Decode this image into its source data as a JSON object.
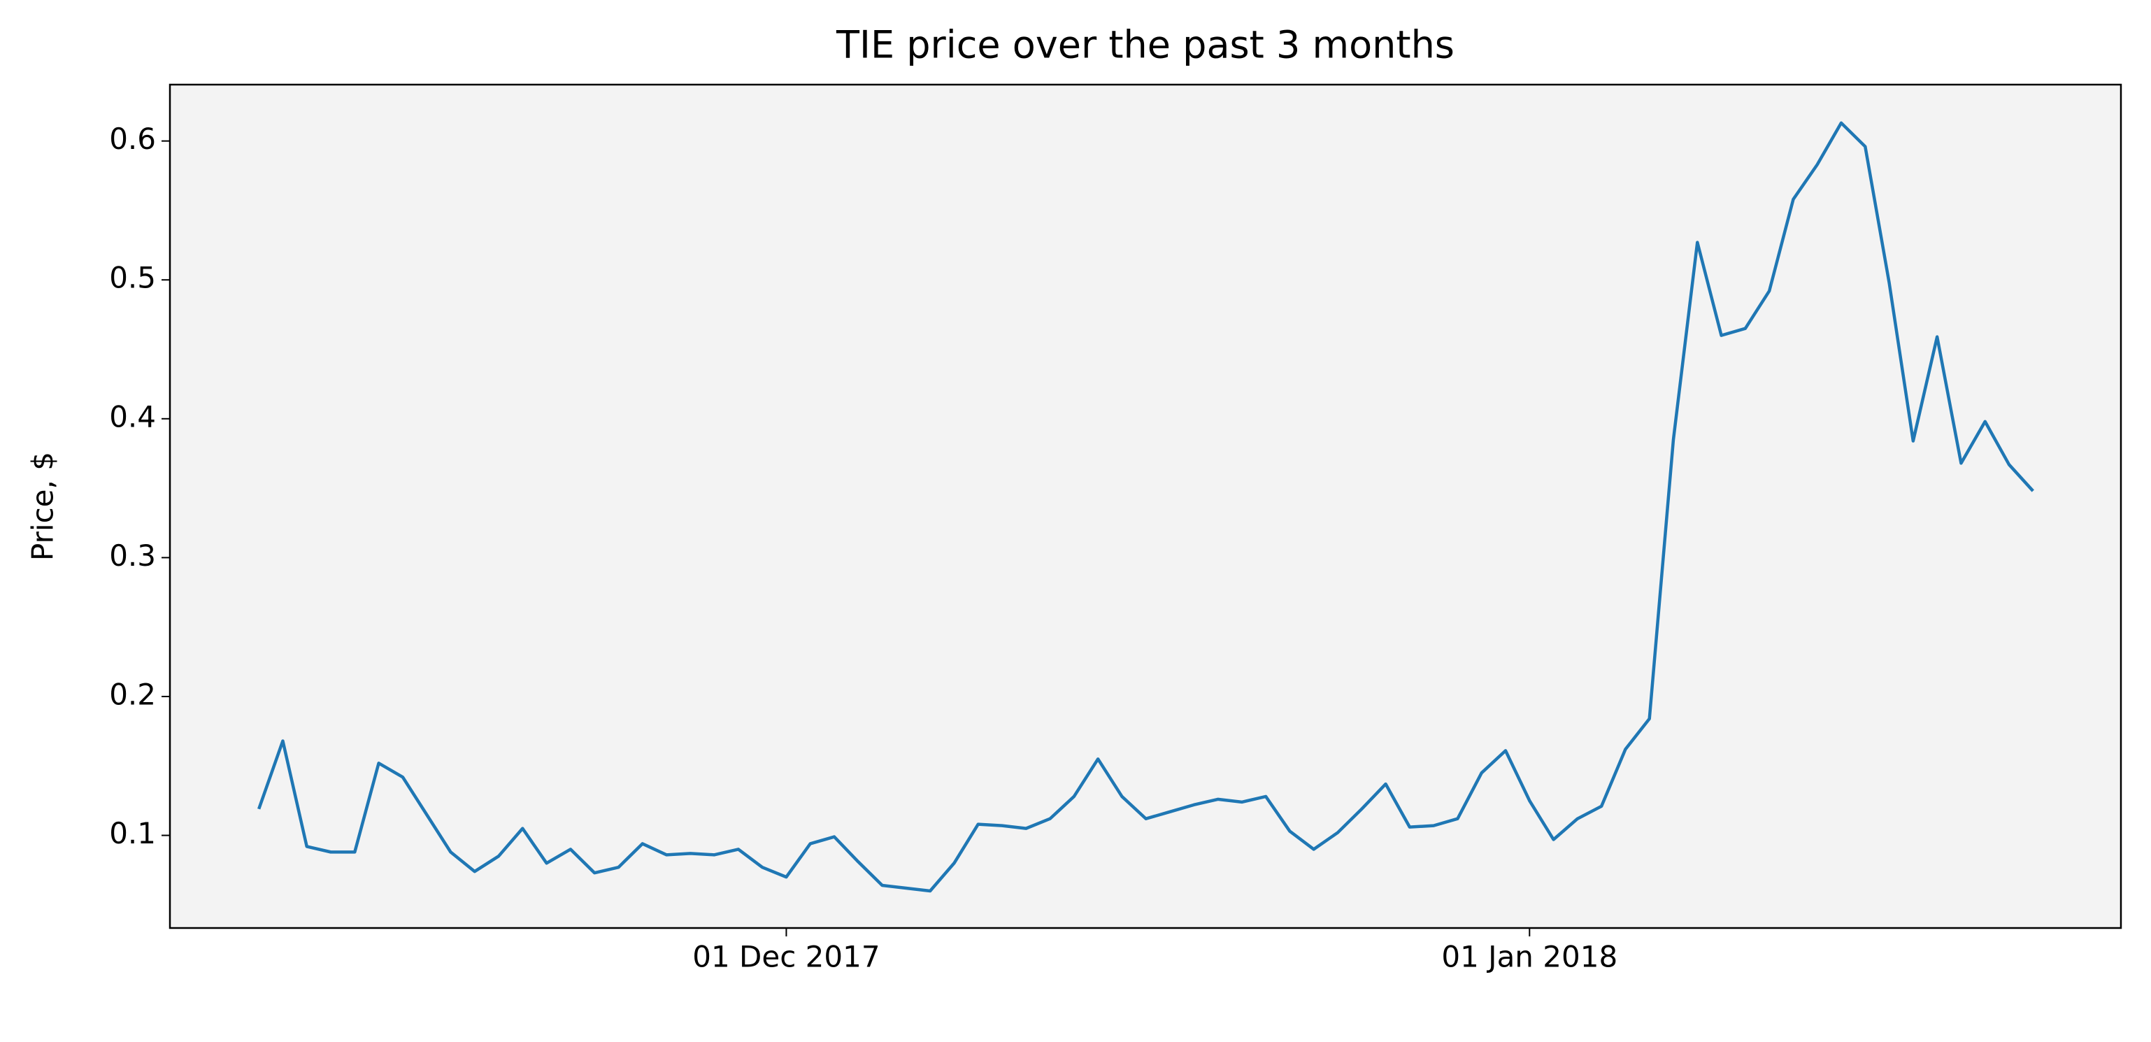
{
  "chart_data": {
    "type": "line",
    "title": "TIE price over the past 3 months",
    "ylabel": "Price, $",
    "x": [
      "2017-11-09",
      "2017-11-10",
      "2017-11-11",
      "2017-11-12",
      "2017-11-13",
      "2017-11-14",
      "2017-11-15",
      "2017-11-16",
      "2017-11-17",
      "2017-11-18",
      "2017-11-19",
      "2017-11-20",
      "2017-11-21",
      "2017-11-22",
      "2017-11-23",
      "2017-11-24",
      "2017-11-25",
      "2017-11-26",
      "2017-11-27",
      "2017-11-28",
      "2017-11-29",
      "2017-11-30",
      "2017-12-01",
      "2017-12-02",
      "2017-12-03",
      "2017-12-04",
      "2017-12-05",
      "2017-12-06",
      "2017-12-07",
      "2017-12-08",
      "2017-12-09",
      "2017-12-10",
      "2017-12-11",
      "2017-12-12",
      "2017-12-13",
      "2017-12-14",
      "2017-12-15",
      "2017-12-16",
      "2017-12-17",
      "2017-12-18",
      "2017-12-19",
      "2017-12-20",
      "2017-12-21",
      "2017-12-22",
      "2017-12-23",
      "2017-12-24",
      "2017-12-25",
      "2017-12-26",
      "2017-12-27",
      "2017-12-28",
      "2017-12-29",
      "2017-12-30",
      "2017-12-31",
      "2018-01-01",
      "2018-01-02",
      "2018-01-03",
      "2018-01-04",
      "2018-01-05",
      "2018-01-06",
      "2018-01-07",
      "2018-01-08",
      "2018-01-09",
      "2018-01-10",
      "2018-01-11",
      "2018-01-12",
      "2018-01-13",
      "2018-01-14",
      "2018-01-15",
      "2018-01-16",
      "2018-01-17",
      "2018-01-18",
      "2018-01-19",
      "2018-01-20",
      "2018-01-21",
      "2018-01-22"
    ],
    "series": [
      {
        "color": "#1f77b4",
        "values": [
          0.119,
          0.168,
          0.092,
          0.088,
          0.088,
          0.152,
          0.142,
          0.115,
          0.088,
          0.074,
          0.085,
          0.105,
          0.08,
          0.09,
          0.073,
          0.077,
          0.094,
          0.086,
          0.087,
          0.086,
          0.09,
          0.077,
          0.07,
          0.094,
          0.099,
          0.081,
          0.064,
          0.062,
          0.06,
          0.08,
          0.108,
          0.107,
          0.105,
          0.112,
          0.128,
          0.155,
          0.128,
          0.112,
          0.117,
          0.122,
          0.126,
          0.124,
          0.128,
          0.103,
          0.09,
          0.102,
          0.119,
          0.137,
          0.106,
          0.107,
          0.112,
          0.145,
          0.161,
          0.125,
          0.097,
          0.112,
          0.121,
          0.162,
          0.184,
          0.385,
          0.527,
          0.46,
          0.465,
          0.492,
          0.558,
          0.583,
          0.613,
          0.596,
          0.498,
          0.384,
          0.459,
          0.368,
          0.398,
          0.367,
          0.348
        ]
      }
    ],
    "xlim": [
      "2017-11-05T07:00Z",
      "2018-01-25T16:00Z"
    ],
    "xticks": [
      {
        "value": "2017-12-01",
        "label": "01 Dec 2017"
      },
      {
        "value": "2018-01-01",
        "label": "01 Jan 2018"
      }
    ],
    "ylim": [
      0.0333,
      0.6406
    ],
    "yticks": [
      0.1,
      0.2,
      0.3,
      0.4,
      0.5,
      0.6
    ],
    "background": "#f3f3f3"
  }
}
